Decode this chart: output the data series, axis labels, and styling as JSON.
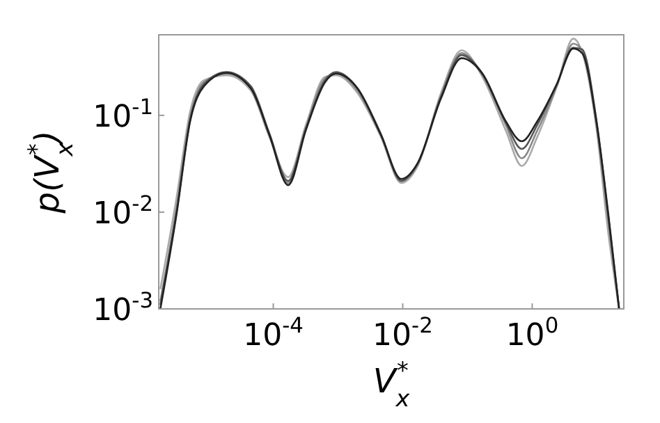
{
  "chart_data": {
    "type": "line",
    "xlabel": "V$_{x}$$^{*}$",
    "ylabel": "p(V$_{x}$$^{*}$)",
    "log": "xy",
    "grid": false,
    "marker": "none",
    "line_style": "solid",
    "xlim": [
      1.7e-06,
      26
    ],
    "ylim": [
      0.001,
      0.68
    ],
    "xticks": [
      {
        "value": 0.0001,
        "label": "10$^{-4}$"
      },
      {
        "value": 0.01,
        "label": "10$^{-2}$"
      },
      {
        "value": 1,
        "label": "10$^{0}$"
      }
    ],
    "yticks": [
      {
        "value": 0.001,
        "label": "10$^{-3}$"
      },
      {
        "value": 0.01,
        "label": "10$^{-2}$"
      },
      {
        "value": 0.1,
        "label": "10$^{-1}$"
      }
    ],
    "x": [
      1.8e-06,
      3.2e-06,
      5.2e-06,
      8.5e-06,
      1.9e-05,
      4.5e-05,
      8.7e-05,
      0.00017,
      0.00032,
      0.00063,
      0.00093,
      0.002,
      0.0046,
      0.0095,
      0.017,
      0.039,
      0.081,
      0.17,
      0.39,
      0.69,
      1.2,
      2.4,
      4.3,
      5.9,
      9.8,
      15,
      22
    ],
    "series": [
      {
        "color": "#aaaaaa",
        "values": [
          0.0016,
          0.014,
          0.11,
          0.23,
          0.26,
          0.18,
          0.06,
          0.023,
          0.08,
          0.25,
          0.26,
          0.17,
          0.06,
          0.02,
          0.03,
          0.17,
          0.47,
          0.25,
          0.07,
          0.03,
          0.06,
          0.2,
          0.62,
          0.45,
          0.075,
          0.006,
          0.001
        ]
      },
      {
        "color": "#888888",
        "values": [
          0.0012,
          0.011,
          0.095,
          0.22,
          0.27,
          0.19,
          0.062,
          0.02,
          0.075,
          0.24,
          0.27,
          0.18,
          0.062,
          0.021,
          0.031,
          0.16,
          0.44,
          0.26,
          0.08,
          0.036,
          0.07,
          0.2,
          0.55,
          0.47,
          0.08,
          0.008,
          0.001
        ]
      },
      {
        "color": "#555555",
        "values": [
          0.0011,
          0.01,
          0.09,
          0.21,
          0.28,
          0.2,
          0.065,
          0.021,
          0.073,
          0.23,
          0.28,
          0.19,
          0.064,
          0.021,
          0.032,
          0.155,
          0.42,
          0.27,
          0.085,
          0.045,
          0.08,
          0.21,
          0.5,
          0.48,
          0.09,
          0.009,
          0.001
        ]
      },
      {
        "color": "#222222",
        "values": [
          0.001,
          0.0095,
          0.087,
          0.2,
          0.275,
          0.19,
          0.063,
          0.019,
          0.071,
          0.22,
          0.27,
          0.19,
          0.063,
          0.022,
          0.032,
          0.15,
          0.39,
          0.27,
          0.087,
          0.054,
          0.087,
          0.21,
          0.49,
          0.44,
          0.087,
          0.0095,
          0.001
        ]
      }
    ]
  }
}
